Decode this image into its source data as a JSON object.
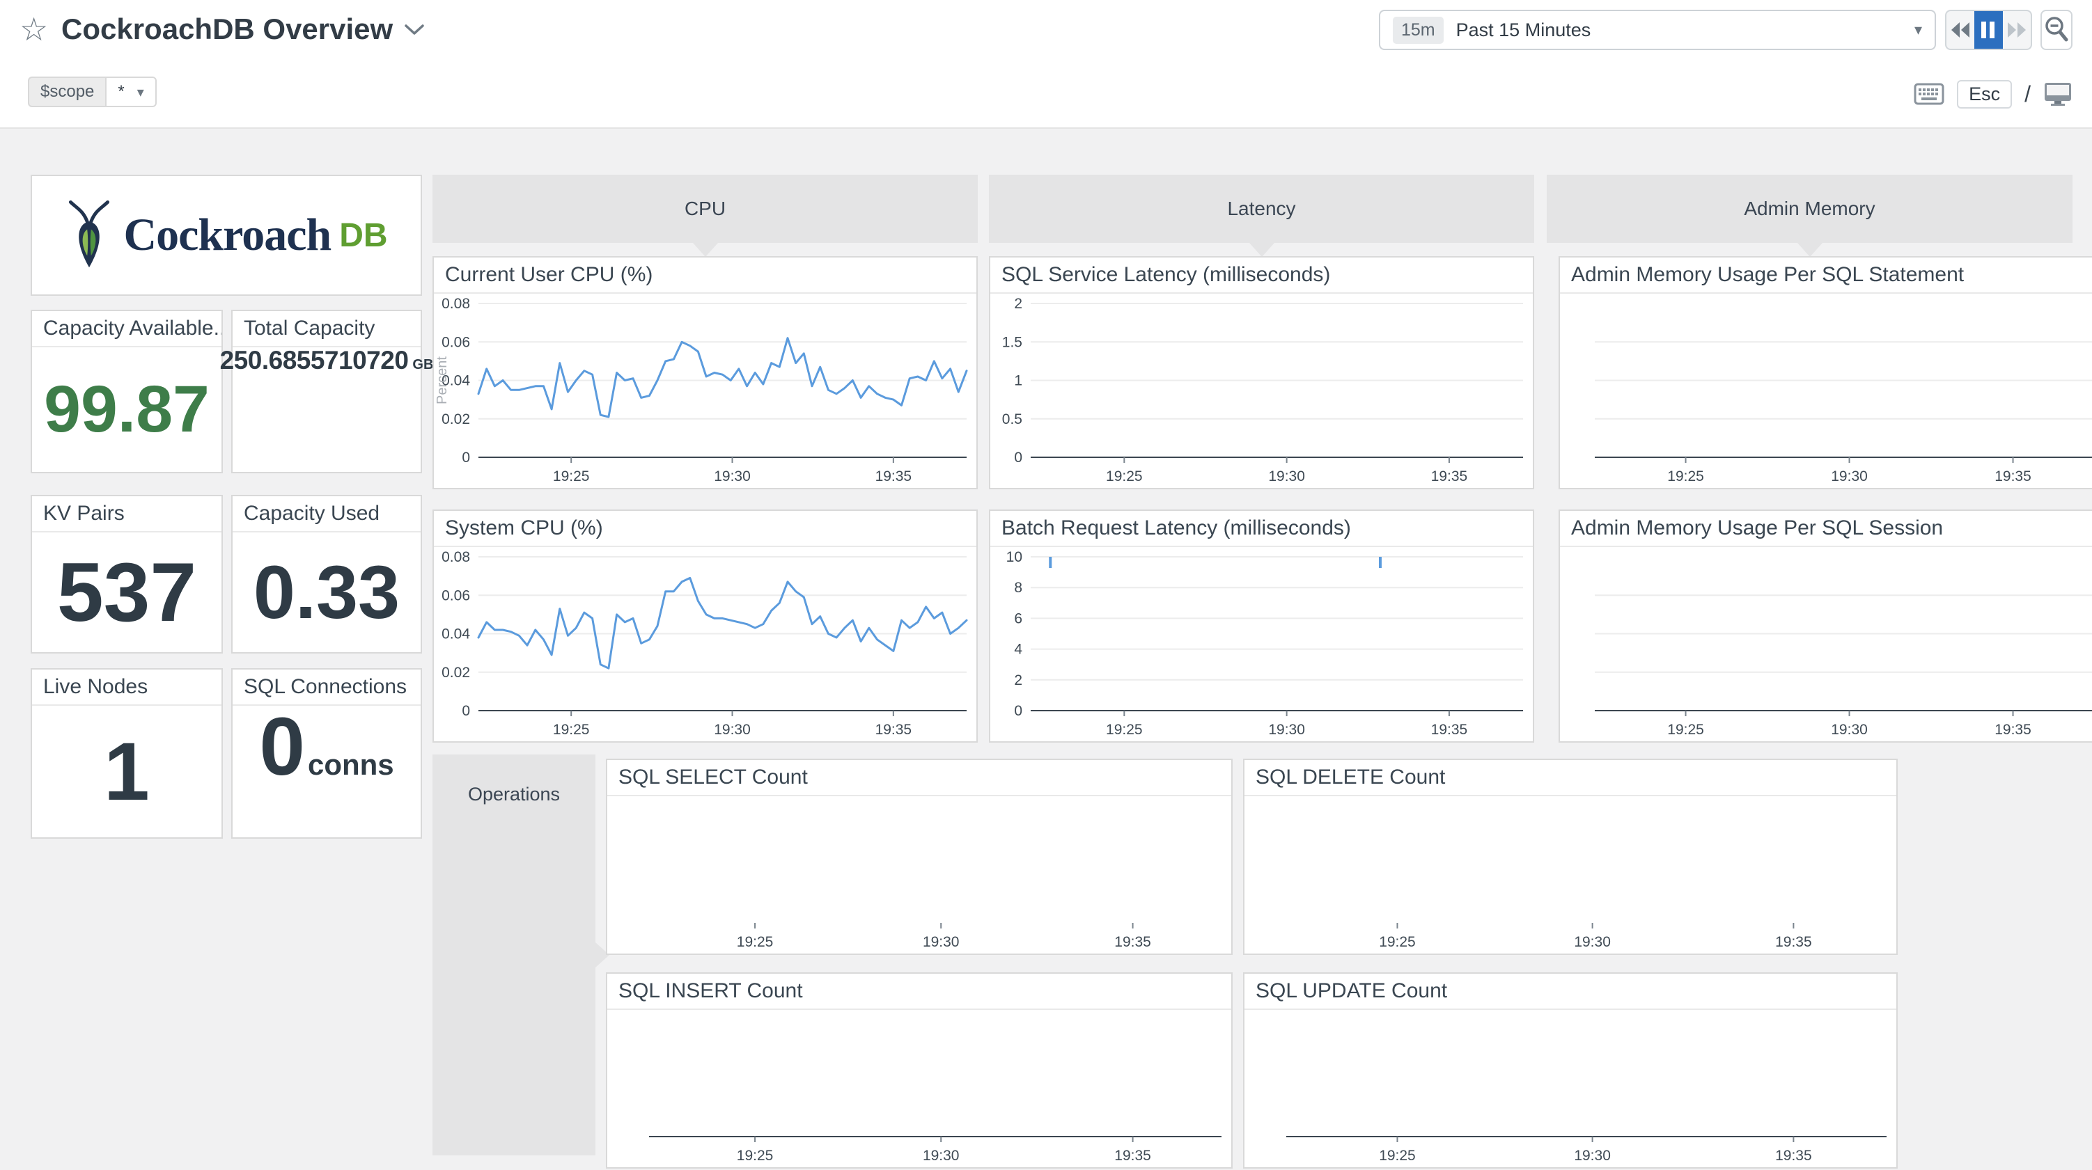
{
  "header": {
    "title": "CockroachDB Overview",
    "template_var": {
      "name": "$scope",
      "value": "*"
    },
    "time_range": {
      "badge": "15m",
      "label": "Past 15 Minutes"
    },
    "shortcut_esc": "Esc",
    "shortcut_slash": "/"
  },
  "icons": {
    "star": "☆",
    "caret_down": "▾"
  },
  "colors": {
    "accent_blue": "#2c6fbf",
    "chart_line_blue": "#5b9bdd",
    "stat_green": "#3e7d49",
    "brand_navy": "#1e3150",
    "brand_green": "#5f9e31",
    "group_gray": "#e4e4e5"
  },
  "logo": {
    "brand": "Cockroach",
    "suffix": "DB"
  },
  "groups": {
    "cpu": "CPU",
    "latency": "Latency",
    "admin_memory": "Admin Memory",
    "operations": "Operations"
  },
  "stat_cards": [
    {
      "label": "Capacity Available...",
      "value": "99.87"
    },
    {
      "label": "Total Capacity",
      "value": "250.6855710720",
      "unit": "GB"
    },
    {
      "label": "KV Pairs",
      "value": "537"
    },
    {
      "label": "Capacity Used",
      "value": "0.33"
    },
    {
      "label": "Live Nodes",
      "value": "1"
    },
    {
      "label": "SQL Connections",
      "value": "0",
      "unit": "conns"
    }
  ],
  "chart_data": [
    {
      "id": "current_user_cpu",
      "type": "line",
      "title": "Current User CPU (%)",
      "ylabel": "Percent",
      "yticks": [
        "0",
        "0.02",
        "0.04",
        "0.06",
        "0.08"
      ],
      "ymax": 0.08,
      "xticks": {
        "labels": [
          "19:25",
          "19:30",
          "19:35"
        ],
        "fracs": [
          0.19,
          0.52,
          0.85
        ]
      },
      "axis_line": true,
      "gutter": 64,
      "color": "#5b9bdd",
      "values": [
        0.033,
        0.046,
        0.037,
        0.04,
        0.035,
        0.035,
        0.036,
        0.037,
        0.037,
        0.025,
        0.049,
        0.034,
        0.04,
        0.045,
        0.043,
        0.022,
        0.021,
        0.044,
        0.04,
        0.041,
        0.031,
        0.032,
        0.04,
        0.05,
        0.051,
        0.06,
        0.058,
        0.055,
        0.042,
        0.044,
        0.043,
        0.04,
        0.046,
        0.037,
        0.044,
        0.038,
        0.049,
        0.047,
        0.062,
        0.049,
        0.054,
        0.037,
        0.047,
        0.035,
        0.033,
        0.036,
        0.04,
        0.031,
        0.037,
        0.033,
        0.031,
        0.03,
        0.027,
        0.041,
        0.042,
        0.04,
        0.05,
        0.041,
        0.046,
        0.034,
        0.045
      ]
    },
    {
      "id": "system_cpu",
      "type": "line",
      "title": "System CPU (%)",
      "yticks": [
        "0",
        "0.02",
        "0.04",
        "0.06",
        "0.08"
      ],
      "ymax": 0.08,
      "xticks": {
        "labels": [
          "19:25",
          "19:30",
          "19:35"
        ],
        "fracs": [
          0.19,
          0.52,
          0.85
        ]
      },
      "axis_line": true,
      "gutter": 64,
      "color": "#5b9bdd",
      "values": [
        0.038,
        0.046,
        0.042,
        0.042,
        0.041,
        0.039,
        0.034,
        0.042,
        0.037,
        0.029,
        0.053,
        0.039,
        0.043,
        0.051,
        0.048,
        0.024,
        0.022,
        0.05,
        0.046,
        0.048,
        0.035,
        0.037,
        0.044,
        0.062,
        0.062,
        0.067,
        0.069,
        0.057,
        0.05,
        0.048,
        0.048,
        0.047,
        0.046,
        0.045,
        0.043,
        0.045,
        0.052,
        0.056,
        0.067,
        0.062,
        0.059,
        0.045,
        0.049,
        0.04,
        0.038,
        0.043,
        0.047,
        0.036,
        0.043,
        0.037,
        0.034,
        0.031,
        0.047,
        0.043,
        0.046,
        0.054,
        0.048,
        0.051,
        0.04,
        0.043,
        0.047
      ]
    },
    {
      "id": "sql_service_latency",
      "type": "line",
      "title": "SQL Service Latency (milliseconds)",
      "yticks": [
        "0",
        "0.5",
        "1",
        "1.5",
        "2"
      ],
      "ymax": 2,
      "xticks": {
        "labels": [
          "19:25",
          "19:30",
          "19:35"
        ],
        "fracs": [
          0.19,
          0.52,
          0.85
        ]
      },
      "axis_line": true,
      "gutter": 58,
      "color": "#5b9bdd",
      "values": null
    },
    {
      "id": "batch_request_latency",
      "type": "line",
      "title": "Batch Request Latency (milliseconds)",
      "yticks": [
        "0",
        "2",
        "4",
        "6",
        "8",
        "10"
      ],
      "ymax": 10,
      "xticks": {
        "labels": [
          "19:25",
          "19:30",
          "19:35"
        ],
        "fracs": [
          0.19,
          0.52,
          0.85
        ]
      },
      "axis_line": true,
      "gutter": 58,
      "color": "#5b9bdd",
      "spikes": [
        {
          "frac": 0.04,
          "value": 10
        },
        {
          "frac": 0.71,
          "value": 10
        }
      ]
    },
    {
      "id": "admin_mem_per_statement",
      "type": "line",
      "title": "Admin Memory Usage Per SQL Statement",
      "yticks": null,
      "gridlines": 3,
      "xticks": {
        "labels": [
          "19:25",
          "19:30",
          "19:35"
        ],
        "fracs": [
          0.175,
          0.49,
          0.805
        ]
      },
      "axis_line": true,
      "gutter": 50,
      "right_pad": 0,
      "color": "#5b9bdd",
      "values": null
    },
    {
      "id": "admin_mem_per_session",
      "type": "line",
      "title": "Admin Memory Usage Per SQL Session",
      "yticks": null,
      "gridlines": 3,
      "xticks": {
        "labels": [
          "19:25",
          "19:30",
          "19:35"
        ],
        "fracs": [
          0.175,
          0.49,
          0.805
        ]
      },
      "axis_line": true,
      "gutter": 50,
      "right_pad": 0,
      "color": "#5b9bdd",
      "values": null
    },
    {
      "id": "sql_select_count",
      "type": "line",
      "title": "SQL SELECT Count",
      "yticks": null,
      "xticks": {
        "labels": [
          "19:25",
          "19:30",
          "19:35"
        ],
        "fracs": [
          0.185,
          0.51,
          0.845
        ]
      },
      "axis_line": false,
      "gutter": 60,
      "color": "#5b9bdd",
      "values": null
    },
    {
      "id": "sql_delete_count",
      "type": "line",
      "title": "SQL DELETE Count",
      "yticks": null,
      "xticks": {
        "labels": [
          "19:25",
          "19:30",
          "19:35"
        ],
        "fracs": [
          0.185,
          0.51,
          0.845
        ]
      },
      "axis_line": false,
      "gutter": 60,
      "color": "#5b9bdd",
      "values": null
    },
    {
      "id": "sql_insert_count",
      "type": "line",
      "title": "SQL INSERT Count",
      "yticks": null,
      "xticks": {
        "labels": [
          "19:25",
          "19:30",
          "19:35"
        ],
        "fracs": [
          0.185,
          0.51,
          0.845
        ]
      },
      "axis_line": true,
      "gutter": 60,
      "color": "#5b9bdd",
      "values": null
    },
    {
      "id": "sql_update_count",
      "type": "line",
      "title": "SQL UPDATE Count",
      "yticks": null,
      "xticks": {
        "labels": [
          "19:25",
          "19:30",
          "19:35"
        ],
        "fracs": [
          0.185,
          0.51,
          0.845
        ]
      },
      "axis_line": true,
      "gutter": 60,
      "color": "#5b9bdd",
      "values": null
    }
  ]
}
